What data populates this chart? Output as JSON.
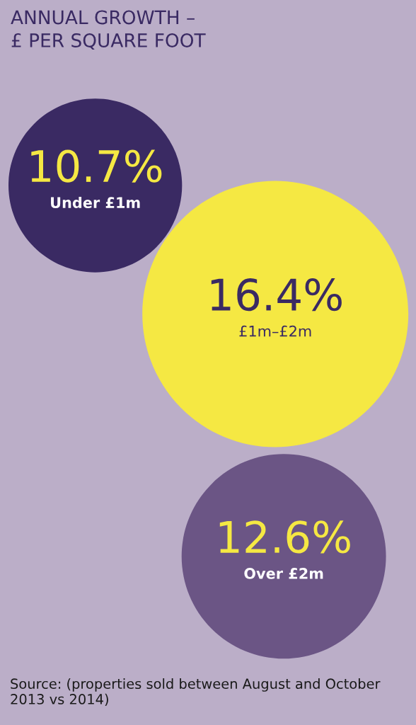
{
  "chart_data": {
    "type": "other",
    "title": "ANNUAL GROWTH –\n£ PER SQUARE FOOT",
    "categories": [
      "Under £1m",
      "£1m–£2m",
      "Over £2m"
    ],
    "values": [
      10.7,
      16.4,
      12.6
    ],
    "value_labels": [
      "10.7%",
      "16.4%",
      "12.6%"
    ],
    "colors": [
      "#3a2a63",
      "#f5e843",
      "#6b5585"
    ],
    "annotations": [
      "Source: (properties sold between August and October 2013 vs 2014)"
    ]
  }
}
